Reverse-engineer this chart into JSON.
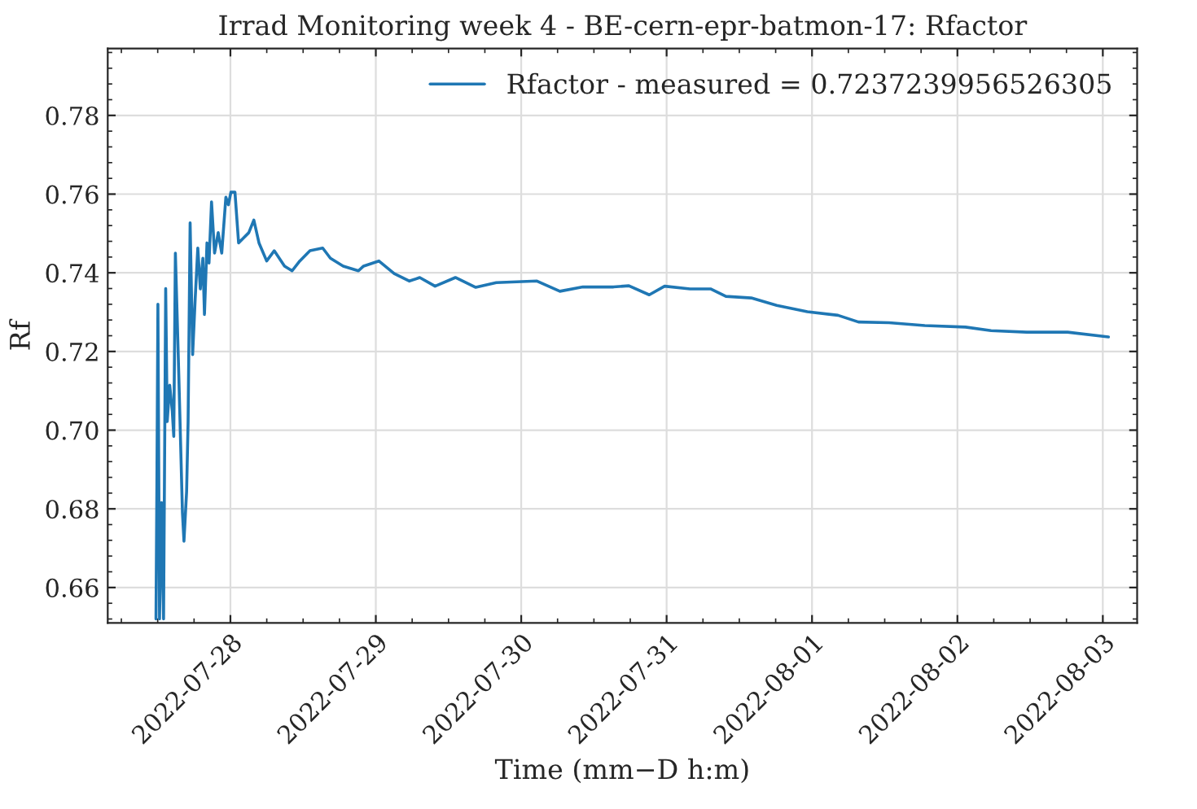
{
  "chart_data": {
    "type": "line",
    "title": "Irrad Monitoring week 4 - BE-cern-epr-batmon-17: Rfactor",
    "xlabel": "Time (mm−D h:m)",
    "ylabel": "Rf",
    "x": [
      "2022-07-27T11:43",
      "2022-07-27T11:52",
      "2022-07-27T12:02",
      "2022-07-27T12:18",
      "2022-07-27T12:38",
      "2022-07-27T12:58",
      "2022-07-27T13:19",
      "2022-07-27T13:34",
      "2022-07-27T13:59",
      "2022-07-27T14:24",
      "2022-07-27T14:39",
      "2022-07-27T14:55",
      "2022-07-27T15:29",
      "2022-07-27T16:05",
      "2022-07-27T16:20",
      "2022-07-27T16:46",
      "2022-07-27T17:01",
      "2022-07-27T17:21",
      "2022-07-27T17:46",
      "2022-07-27T18:11",
      "2022-07-27T18:37",
      "2022-07-27T19:02",
      "2022-07-27T19:27",
      "2022-07-27T19:43",
      "2022-07-27T20:08",
      "2022-07-27T20:28",
      "2022-07-27T20:53",
      "2022-07-27T21:23",
      "2022-07-27T21:59",
      "2022-07-27T22:34",
      "2022-07-27T23:15",
      "2022-07-27T23:40",
      "2022-07-28T00:05",
      "2022-07-28T00:45",
      "2022-07-28T01:21",
      "2022-07-28T02:11",
      "2022-07-28T03:02",
      "2022-07-28T03:52",
      "2022-07-28T04:43",
      "2022-07-28T05:59",
      "2022-07-28T07:14",
      "2022-07-28T08:56",
      "2022-07-28T10:11",
      "2022-07-28T11:27",
      "2022-07-28T13:08",
      "2022-07-28T15:14",
      "2022-07-28T16:30",
      "2022-07-28T18:37",
      "2022-07-28T21:08",
      "2022-07-28T21:59",
      "2022-07-29T00:30",
      "2022-07-29T03:02",
      "2022-07-29T05:33",
      "2022-07-29T07:15",
      "2022-07-29T09:47",
      "2022-07-29T13:08",
      "2022-07-29T16:30",
      "2022-07-29T19:53",
      "2022-07-29T23:14",
      "2022-07-30T02:36",
      "2022-07-30T06:23",
      "2022-07-30T10:11",
      "2022-07-30T15:14",
      "2022-07-30T17:46",
      "2022-07-30T21:08",
      "2022-07-30T23:40",
      "2022-07-31T03:52",
      "2022-07-31T07:15",
      "2022-07-31T09:47",
      "2022-07-31T13:58",
      "2022-07-31T18:11",
      "2022-07-31T23:14",
      "2022-08-01T04:17",
      "2022-08-01T07:40",
      "2022-08-01T12:43",
      "2022-08-01T18:37",
      "2022-08-02T01:20",
      "2022-08-02T05:34",
      "2022-08-02T11:27",
      "2022-08-02T18:11",
      "2022-08-03T00:56"
    ],
    "series": [
      {
        "name": "Rfactor - measured = 0.7237239956526305",
        "color": "#1f77b4",
        "values": [
          0.652,
          0.6867,
          0.732,
          0.652,
          0.6816,
          0.652,
          0.736,
          0.7022,
          0.7114,
          0.7049,
          0.6984,
          0.745,
          0.7139,
          0.679,
          0.6718,
          0.6843,
          0.7022,
          0.7527,
          0.7192,
          0.7333,
          0.7463,
          0.7359,
          0.7437,
          0.7294,
          0.7476,
          0.7425,
          0.758,
          0.745,
          0.7502,
          0.745,
          0.7592,
          0.7573,
          0.7605,
          0.7605,
          0.7476,
          0.7489,
          0.7502,
          0.7534,
          0.7476,
          0.743,
          0.7456,
          0.7417,
          0.7405,
          0.743,
          0.7456,
          0.7463,
          0.7437,
          0.7417,
          0.7405,
          0.7417,
          0.743,
          0.7398,
          0.7379,
          0.7388,
          0.7366,
          0.7388,
          0.7363,
          0.7375,
          0.7377,
          0.7379,
          0.7353,
          0.7364,
          0.7364,
          0.7367,
          0.7344,
          0.7366,
          0.7359,
          0.7359,
          0.734,
          0.7336,
          0.7317,
          0.7301,
          0.7292,
          0.7275,
          0.7273,
          0.7266,
          0.7262,
          0.7253,
          0.7249,
          0.7249,
          0.7237
        ]
      }
    ],
    "xlim": [
      "2022-07-27T03:45",
      "2022-08-03T05:40"
    ],
    "xticks": [
      "2022-07-28",
      "2022-07-29",
      "2022-07-30",
      "2022-07-31",
      "2022-08-01",
      "2022-08-02",
      "2022-08-03"
    ],
    "ylim": [
      0.651,
      0.797
    ],
    "yticks": [
      {
        "value": 0.66,
        "label": "0.66"
      },
      {
        "value": 0.68,
        "label": "0.68"
      },
      {
        "value": 0.7,
        "label": "0.70"
      },
      {
        "value": 0.72,
        "label": "0.72"
      },
      {
        "value": 0.74,
        "label": "0.74"
      },
      {
        "value": 0.76,
        "label": "0.76"
      },
      {
        "value": 0.78,
        "label": "0.78"
      }
    ],
    "grid": true,
    "legend": "top right",
    "line_style": "solid",
    "marker": "none"
  }
}
